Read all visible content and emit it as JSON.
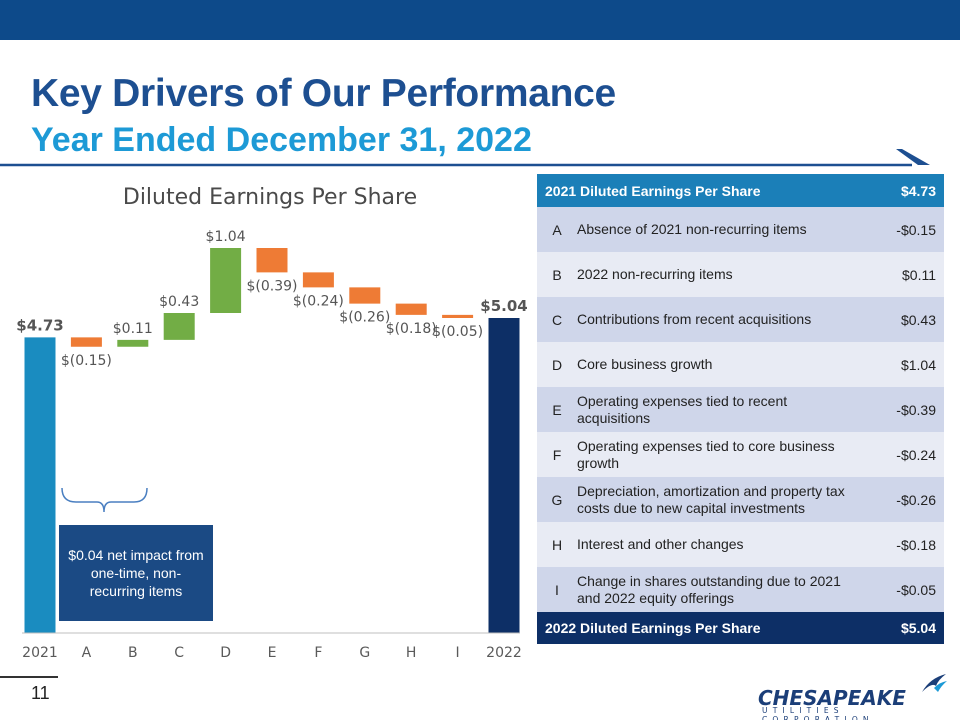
{
  "header": {
    "title": "Key Drivers of Our Performance",
    "subtitle": "Year Ended December 31, 2022"
  },
  "colors": {
    "top_bar": "#0d4a8a",
    "title": "#1d4f91",
    "subtitle": "#1d9ad6",
    "total_start": "#1a8cc0",
    "total_end": "#0d2f66",
    "increase": "#72ad45",
    "decrease": "#ee7b35",
    "note_box": "#1b4a84"
  },
  "chart_data": {
    "type": "bar",
    "subtype": "waterfall",
    "title": "Diluted Earnings Per Share",
    "categories": [
      "2021",
      "A",
      "B",
      "C",
      "D",
      "E",
      "F",
      "G",
      "H",
      "I",
      "2022"
    ],
    "values": [
      4.73,
      -0.15,
      0.11,
      0.43,
      1.04,
      -0.39,
      -0.24,
      -0.26,
      -0.18,
      -0.05,
      5.04
    ],
    "kinds": [
      "total",
      "delta",
      "delta",
      "delta",
      "delta",
      "delta",
      "delta",
      "delta",
      "delta",
      "delta",
      "total"
    ],
    "labels": [
      "$4.73",
      "$(0.15)",
      "$0.11",
      "$0.43",
      "$1.04",
      "$(0.39)",
      "$(0.24)",
      "$(0.26)",
      "$(0.18)",
      "$(0.05)",
      "$5.04"
    ],
    "xlabel": "",
    "ylabel": "",
    "grid": false,
    "legend": "none"
  },
  "annotation": {
    "note": "$0.04 net impact from one-time, non-recurring items"
  },
  "table": {
    "header": {
      "label": "2021 Diluted Earnings Per Share",
      "value": "$4.73"
    },
    "rows": [
      {
        "letter": "A",
        "description": "Absence of 2021 non-recurring items",
        "value": "-$0.15"
      },
      {
        "letter": "B",
        "description": "2022 non-recurring items",
        "value": "$0.11"
      },
      {
        "letter": "C",
        "description": "Contributions from recent acquisitions",
        "value": "$0.43"
      },
      {
        "letter": "D",
        "description": "Core business growth",
        "value": "$1.04"
      },
      {
        "letter": "E",
        "description": "Operating expenses tied to recent acquisitions",
        "value": "-$0.39"
      },
      {
        "letter": "F",
        "description": "Operating expenses tied to core business growth",
        "value": "-$0.24"
      },
      {
        "letter": "G",
        "description": "Depreciation, amortization and property tax costs due to new capital investments",
        "value": "-$0.26"
      },
      {
        "letter": "H",
        "description": "Interest and other changes",
        "value": "-$0.18"
      },
      {
        "letter": "I",
        "description": "Change in shares outstanding due to 2021 and 2022 equity offerings",
        "value": "-$0.05"
      }
    ],
    "footer": {
      "label": "2022 Diluted Earnings Per Share",
      "value": "$5.04"
    }
  },
  "footer": {
    "page_number": "11",
    "logo_word": "CHESAPEAKE",
    "logo_sub": "UTILITIES CORPORATION"
  }
}
